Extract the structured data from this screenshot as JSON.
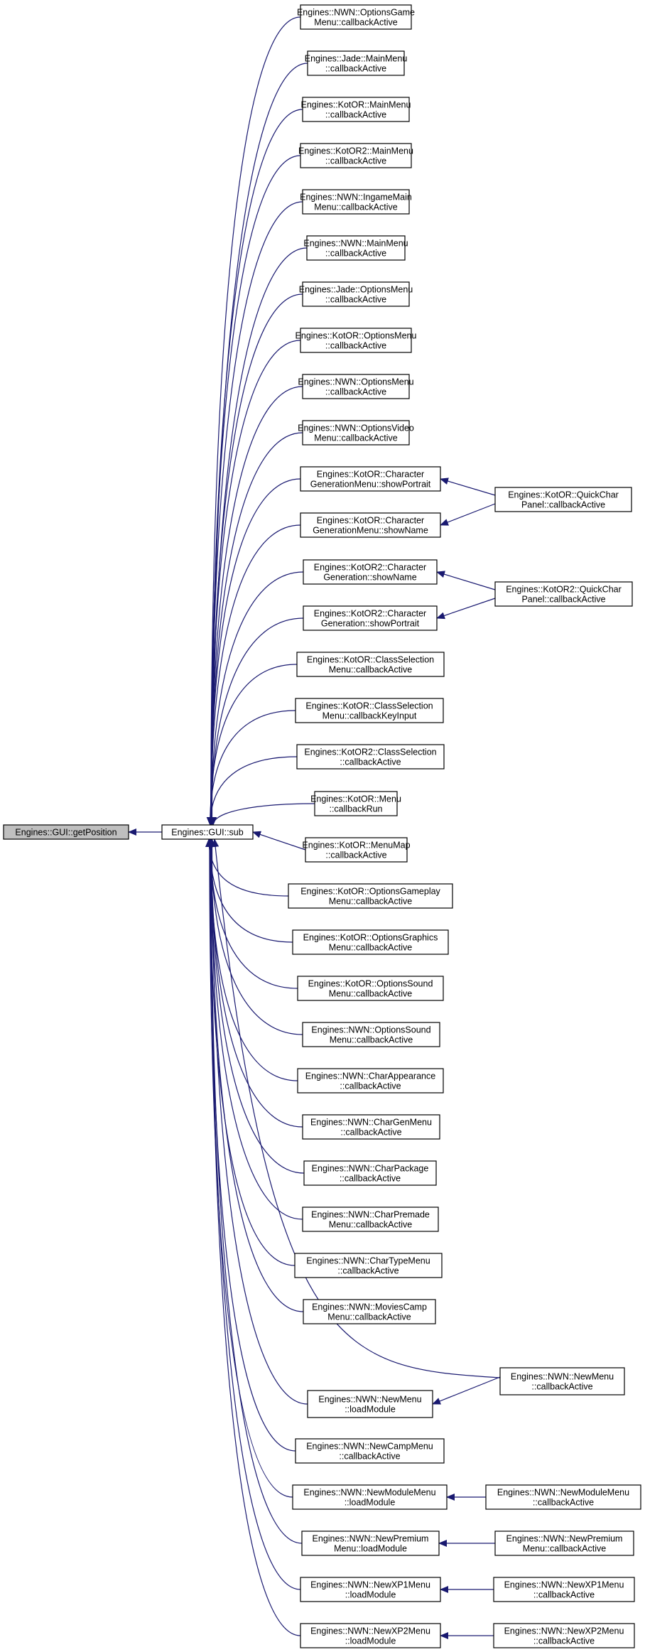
{
  "graph": {
    "root": {
      "id": "root",
      "lines": [
        "Engines::GUI::getPosition"
      ]
    },
    "hub": {
      "id": "hub",
      "lines": [
        "Engines::GUI::sub"
      ]
    },
    "callers": [
      {
        "id": "c1",
        "lines": [
          "Engines::NWN::OptionsGame",
          "Menu::callbackActive"
        ]
      },
      {
        "id": "c2",
        "lines": [
          "Engines::Jade::MainMenu",
          "::callbackActive"
        ]
      },
      {
        "id": "c3",
        "lines": [
          "Engines::KotOR::MainMenu",
          "::callbackActive"
        ]
      },
      {
        "id": "c4",
        "lines": [
          "Engines::KotOR2::MainMenu",
          "::callbackActive"
        ]
      },
      {
        "id": "c5",
        "lines": [
          "Engines::NWN::IngameMain",
          "Menu::callbackActive"
        ]
      },
      {
        "id": "c6",
        "lines": [
          "Engines::NWN::MainMenu",
          "::callbackActive"
        ]
      },
      {
        "id": "c7",
        "lines": [
          "Engines::Jade::OptionsMenu",
          "::callbackActive"
        ]
      },
      {
        "id": "c8",
        "lines": [
          "Engines::KotOR::OptionsMenu",
          "::callbackActive"
        ]
      },
      {
        "id": "c9",
        "lines": [
          "Engines::NWN::OptionsMenu",
          "::callbackActive"
        ]
      },
      {
        "id": "c10",
        "lines": [
          "Engines::NWN::OptionsVideo",
          "Menu::callbackActive"
        ]
      },
      {
        "id": "c11",
        "lines": [
          "Engines::KotOR::Character",
          "GenerationMenu::showPortrait"
        ]
      },
      {
        "id": "c12",
        "lines": [
          "Engines::KotOR::Character",
          "GenerationMenu::showName"
        ]
      },
      {
        "id": "c13",
        "lines": [
          "Engines::KotOR2::Character",
          "Generation::showName"
        ]
      },
      {
        "id": "c14",
        "lines": [
          "Engines::KotOR2::Character",
          "Generation::showPortrait"
        ]
      },
      {
        "id": "c15",
        "lines": [
          "Engines::KotOR::ClassSelection",
          "Menu::callbackActive"
        ]
      },
      {
        "id": "c16",
        "lines": [
          "Engines::KotOR::ClassSelection",
          "Menu::callbackKeyInput"
        ]
      },
      {
        "id": "c17",
        "lines": [
          "Engines::KotOR2::ClassSelection",
          "::callbackActive"
        ]
      },
      {
        "id": "c18",
        "lines": [
          "Engines::KotOR::Menu",
          "::callbackRun"
        ]
      },
      {
        "id": "c19",
        "lines": [
          "Engines::KotOR::MenuMap",
          "::callbackActive"
        ]
      },
      {
        "id": "c20",
        "lines": [
          "Engines::KotOR::OptionsGameplay",
          "Menu::callbackActive"
        ]
      },
      {
        "id": "c21",
        "lines": [
          "Engines::KotOR::OptionsGraphics",
          "Menu::callbackActive"
        ]
      },
      {
        "id": "c22",
        "lines": [
          "Engines::KotOR::OptionsSound",
          "Menu::callbackActive"
        ]
      },
      {
        "id": "c23",
        "lines": [
          "Engines::NWN::OptionsSound",
          "Menu::callbackActive"
        ]
      },
      {
        "id": "c24",
        "lines": [
          "Engines::NWN::CharAppearance",
          "::callbackActive"
        ]
      },
      {
        "id": "c25",
        "lines": [
          "Engines::NWN::CharGenMenu",
          "::callbackActive"
        ]
      },
      {
        "id": "c26",
        "lines": [
          "Engines::NWN::CharPackage",
          "::callbackActive"
        ]
      },
      {
        "id": "c27",
        "lines": [
          "Engines::NWN::CharPremade",
          "Menu::callbackActive"
        ]
      },
      {
        "id": "c28",
        "lines": [
          "Engines::NWN::CharTypeMenu",
          "::callbackActive"
        ]
      },
      {
        "id": "c29",
        "lines": [
          "Engines::NWN::MoviesCamp",
          "Menu::callbackActive"
        ]
      },
      {
        "id": "c30",
        "lines": [
          "Engines::NWN::NewMenu",
          "::loadModule"
        ]
      },
      {
        "id": "c31",
        "lines": [
          "Engines::NWN::NewCampMenu",
          "::callbackActive"
        ]
      },
      {
        "id": "c32",
        "lines": [
          "Engines::NWN::NewModuleMenu",
          "::loadModule"
        ]
      },
      {
        "id": "c33",
        "lines": [
          "Engines::NWN::NewPremium",
          "Menu::loadModule"
        ]
      },
      {
        "id": "c34",
        "lines": [
          "Engines::NWN::NewXP1Menu",
          "::loadModule"
        ]
      },
      {
        "id": "c35",
        "lines": [
          "Engines::NWN::NewXP2Menu",
          "::loadModule"
        ]
      }
    ],
    "outer": [
      {
        "id": "o1",
        "lines": [
          "Engines::KotOR::QuickChar",
          "Panel::callbackActive"
        ],
        "calls": [
          "c11",
          "c12"
        ]
      },
      {
        "id": "o2",
        "lines": [
          "Engines::KotOR2::QuickChar",
          "Panel::callbackActive"
        ],
        "calls": [
          "c13",
          "c14"
        ]
      },
      {
        "id": "o3",
        "lines": [
          "Engines::NWN::NewMenu",
          "::callbackActive"
        ],
        "calls": [
          "c30",
          "hub"
        ]
      },
      {
        "id": "o4",
        "lines": [
          "Engines::NWN::NewModuleMenu",
          "::callbackActive"
        ],
        "calls": [
          "c32"
        ]
      },
      {
        "id": "o5",
        "lines": [
          "Engines::NWN::NewPremium",
          "Menu::callbackActive"
        ],
        "calls": [
          "c33"
        ]
      },
      {
        "id": "o6",
        "lines": [
          "Engines::NWN::NewXP1Menu",
          "::callbackActive"
        ],
        "calls": [
          "c34"
        ]
      },
      {
        "id": "o7",
        "lines": [
          "Engines::NWN::NewXP2Menu",
          "::callbackActive"
        ],
        "calls": [
          "c35"
        ]
      }
    ],
    "colors": {
      "edge": "#191970",
      "root_fill": "#bfbfbf",
      "node_fill": "#ffffff",
      "border": "#000000"
    }
  }
}
